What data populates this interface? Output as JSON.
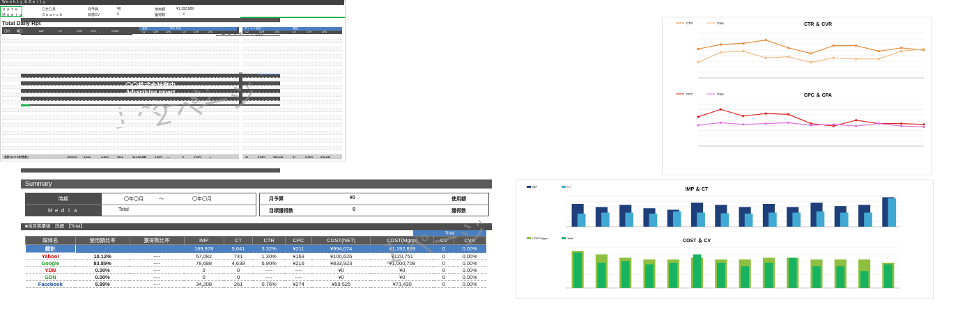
{
  "cover": {
    "media_label": "Media：",
    "client": "〇〇株式会社 御中",
    "date_label": "Ｄａｔｅ",
    "date_val": "：〇月",
    "title_line1": "〇〇株式会社御中",
    "title_line2": "Advertising report",
    "watermark": "１ページ"
  },
  "daily": {
    "header_bar": "Ｗｅｅｋｌｙ ＆ Ｄａｉｌｙ",
    "date_label": "Ｄａｔｅ",
    "date_val": "〇年〇月",
    "media_label": "Ｍｅｄｉａ",
    "media_val": "Ｓｅａｒｃｈ",
    "budget_label": "月予算",
    "budget_val": "¥0",
    "spend_label": "使用額",
    "spend_val": "¥1,192,889",
    "cv_target_label": "目標CV",
    "cv_target_val": "0",
    "cv_label": "獲得数",
    "cv_val": "0",
    "title": "Total Daily Rpt",
    "col_headers": [
      "日付",
      "曜日",
      "",
      "IMP",
      "CT",
      "CTR",
      "CPC",
      "COST"
    ],
    "group1": "合計",
    "group2": "Ｗｅｂ計",
    "group3": "Ｄｉａｌ合計",
    "group4": "電話",
    "sub_headers": [
      "CV",
      "CVR",
      "CPA",
      "CV",
      "CVR",
      "CPA"
    ],
    "right_headers": [
      "CV",
      "CVR",
      "CPA",
      "CV",
      "CVR",
      "CPA"
    ],
    "footer_label": "合計(ｗｅｂ計合計)",
    "footer_vals": [
      "169,978",
      "5,641",
      "3.32%",
      "¥211",
      "¥1,192,889",
      "0",
      "0.00%",
      "---",
      "0",
      "0.00%",
      "---"
    ],
    "right_footer": [
      "37",
      "0.06%",
      "¥32,243",
      "37",
      "0.06%",
      "¥32,243"
    ],
    "watermark": "２ページ"
  },
  "summary": {
    "title": "Summary",
    "period_label": "時期",
    "period_from": "〇年〇月",
    "period_sep": "〜",
    "period_to": "〇年〇月",
    "media_label": "Ｍｅｄｉａ",
    "media_val": "Total",
    "budget_label": "月予算",
    "budget_val": "¥0",
    "spend_label": "使用額",
    "cv_target_label": "目標獲得数",
    "cv_target_val": "0",
    "cv_label": "獲得数",
    "section_label": "■当月実績値　詳細　【Total】",
    "total_tab": "Total",
    "watermark": "１ページ",
    "headers": [
      "媒体名",
      "使用額比率",
      "獲得数比率",
      "IMP",
      "CT",
      "CTR",
      "CPC",
      "COST(NET)",
      "COST(Mgon)",
      "CV",
      "CVR"
    ],
    "rows": [
      {
        "name": "総計",
        "color": "#ffffff",
        "ratio": "",
        "cv_ratio": "",
        "imp": "169,978",
        "ct": "5,641",
        "ctr": "3.32%",
        "cpc": "¥211",
        "net": "¥994,074",
        "mgon": "¥1,192,889",
        "cv": "0",
        "cvr": "0.00%"
      },
      {
        "name": "Yahoo!",
        "color": "#e00000",
        "ratio": "10.12%",
        "cv_ratio": "----",
        "imp": "57,082",
        "ct": "741",
        "ctr": "1.30%",
        "cpc": "¥163",
        "net": "¥100,626",
        "mgon": "¥120,751",
        "cv": "0",
        "cvr": "0.00%"
      },
      {
        "name": "Google",
        "color": "#1f9e1f",
        "ratio": "83.89%",
        "cv_ratio": "----",
        "imp": "78,688",
        "ct": "4,639",
        "ctr": "5.90%",
        "cpc": "¥216",
        "net": "¥833,923",
        "mgon": "¥1,000,708",
        "cv": "0",
        "cvr": "0.00%"
      },
      {
        "name": "YDN",
        "color": "#e00000",
        "ratio": "0.00%",
        "cv_ratio": "----",
        "imp": "0",
        "ct": "0",
        "ctr": "----",
        "cpc": "----",
        "net": "¥0",
        "mgon": "¥0",
        "cv": "0",
        "cvr": "0.00%"
      },
      {
        "name": "GDN",
        "color": "#1f9e1f",
        "ratio": "0.00%",
        "cv_ratio": "----",
        "imp": "0",
        "ct": "0",
        "ctr": "----",
        "cpc": "----",
        "net": "¥0",
        "mgon": "¥0",
        "cv": "0",
        "cvr": "0.00%"
      },
      {
        "name": "Facebook",
        "color": "#1f4fa0",
        "ratio": "5.99%",
        "cv_ratio": "----",
        "imp": "34,208",
        "ct": "261",
        "ctr": "0.76%",
        "cpc": "¥274",
        "net": "¥59,525",
        "mgon": "¥71,430",
        "cv": "0",
        "cvr": "0.00%"
      }
    ]
  },
  "chart_data": [
    {
      "type": "line",
      "title": "CTR ＆ CVR",
      "series": [
        {
          "name": "CTR",
          "color": "#e58a3a",
          "values": [
            1.3,
            1.5,
            1.55,
            1.7,
            1.35,
            1.1,
            1.45,
            1.45,
            1.2,
            1.35,
            1.25
          ]
        },
        {
          "name": "Total",
          "color": "#f2b882",
          "values": [
            0.7,
            1.15,
            1.2,
            0.9,
            0.95,
            0.7,
            0.9,
            0.85,
            0.85,
            1.2,
            1.3
          ]
        }
      ],
      "ylim": [
        0,
        2.0
      ]
    },
    {
      "type": "line",
      "title": "CPC ＆ CPA",
      "series": [
        {
          "name": "CPC",
          "color": "#e02020",
          "values": [
            350,
            440,
            360,
            390,
            380,
            270,
            240,
            310,
            270,
            270,
            260
          ]
        },
        {
          "name": "Total",
          "color": "#e070e0",
          "values": [
            250,
            280,
            260,
            270,
            280,
            250,
            260,
            240,
            270,
            240,
            230
          ]
        }
      ],
      "ylim": [
        0,
        500
      ]
    },
    {
      "type": "bar",
      "title": "IMP ＆ CT",
      "series": [
        {
          "name": "IMP",
          "color": "#1f3f7a",
          "values": [
            1050000,
            900000,
            1000000,
            850000,
            780000,
            1100000,
            1000000,
            900000,
            1050000,
            900000,
            1100000,
            950000,
            1000000,
            1350000
          ]
        },
        {
          "name": "CT",
          "color": "#41a9d4",
          "values": [
            600000,
            650000,
            650000,
            600000,
            700000,
            650000,
            620000,
            600000,
            650000,
            650000,
            700000,
            650000,
            650000,
            1300000
          ]
        }
      ],
      "ylim": [
        0,
        1400000
      ]
    },
    {
      "type": "bar",
      "title": "COST ＆ CV",
      "series": [
        {
          "name": "COST/Mgon",
          "color": "#8fbf40",
          "values": [
            1100000,
            1000000,
            900000,
            850000,
            850000,
            900000,
            850000,
            850000,
            900000,
            900000,
            850000,
            850000,
            850000,
            750000
          ]
        },
        {
          "name": "Total",
          "color": "#17b360",
          "values": [
            1050000,
            750000,
            800000,
            700000,
            750000,
            1000000,
            750000,
            650000,
            750000,
            900000,
            650000,
            650000,
            500000,
            700000
          ]
        }
      ],
      "ylim": [
        0,
        1200000
      ]
    }
  ]
}
